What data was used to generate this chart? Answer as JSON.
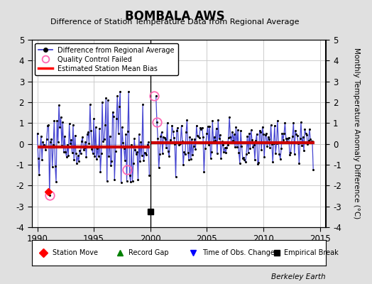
{
  "title": "BOMBALA AWS",
  "subtitle": "Difference of Station Temperature Data from Regional Average",
  "right_ylabel": "Monthly Temperature Anomaly Difference (°C)",
  "xlim": [
    1989.5,
    2015.5
  ],
  "ylim": [
    -4,
    5
  ],
  "yticks": [
    -4,
    -3,
    -2,
    -1,
    0,
    1,
    2,
    3,
    4,
    5
  ],
  "xticks": [
    1990,
    1995,
    2000,
    2005,
    2010,
    2015
  ],
  "fig_bg_color": "#e0e0e0",
  "plot_bg_color": "#ffffff",
  "grid_color": "#cccccc",
  "line_color": "#3333cc",
  "marker_color": "#000000",
  "bias_color": "#cc0000",
  "bias_seg1": [
    1990.0,
    1999.95,
    -0.15
  ],
  "bias_seg2": [
    2000.05,
    2014.5,
    0.07
  ],
  "empirical_break_x": 2000.0,
  "empirical_break_y": -3.25,
  "station_move_x": 1991.0,
  "station_move_y": -2.3,
  "qc_failed": [
    [
      1991.083,
      -2.45
    ],
    [
      2000.333,
      2.3
    ],
    [
      2000.583,
      1.05
    ],
    [
      1997.917,
      -1.25
    ]
  ],
  "berkeley_earth_label": "Berkeley Earth",
  "seg1_seed": 10,
  "seg2_seed": 20,
  "seg1_mean": -0.15,
  "seg1_std": 0.85,
  "seg2_mean": 0.07,
  "seg2_std": 0.52
}
